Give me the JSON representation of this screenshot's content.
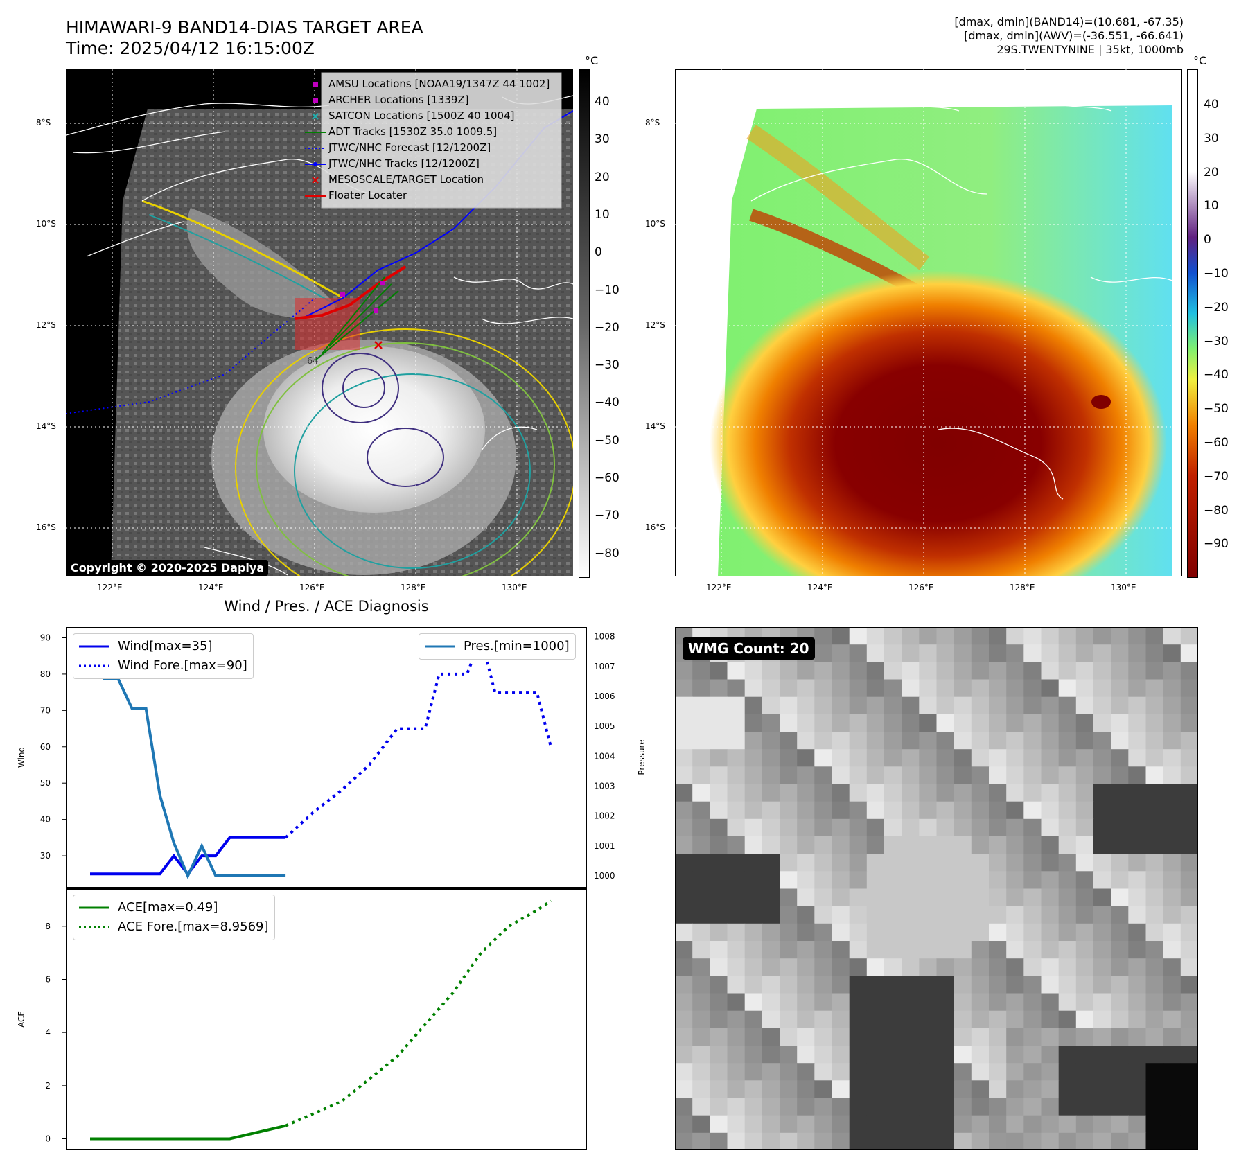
{
  "header": {
    "title_line1": "HIMAWARI-9 BAND14-DIAS TARGET AREA",
    "title_line2": "Time: 2025/04/12 16:15:00Z",
    "info_line1": "[dmax, dmin](BAND14)=(10.681, -67.35)",
    "info_line2": "[dmax, dmin](AWV)=(-36.551, -66.641)",
    "info_line3": "29S.TWENTYNINE | 35kt, 1000mb"
  },
  "maps": {
    "lat_labels": [
      "8°S",
      "10°S",
      "12°S",
      "14°S",
      "16°S"
    ],
    "lon_labels": [
      "122°E",
      "124°E",
      "126°E",
      "128°E",
      "130°E"
    ],
    "copyright": "Copyright © 2020-2025 Dapiya",
    "colorbar_unit": "°C",
    "left_colorbar_ticks": [
      "40",
      "30",
      "20",
      "10",
      "0",
      "−10",
      "−20",
      "−30",
      "−40",
      "−50",
      "−60",
      "−70",
      "−80"
    ],
    "right_colorbar_ticks": [
      "40",
      "30",
      "20",
      "10",
      "0",
      "−10",
      "−20",
      "−30",
      "−40",
      "−50",
      "−60",
      "−70",
      "−80",
      "−90"
    ],
    "contour_label": "64",
    "legend": [
      {
        "label": "AMSU Locations [NOAA19/1347Z 44 1002]",
        "marker": "square",
        "color": "#c000c0"
      },
      {
        "label": "ARCHER Locations [1339Z]",
        "marker": "square",
        "color": "#c000c0"
      },
      {
        "label": "SATCON Locations [1500Z 40 1004]",
        "marker": "x",
        "color": "#20b0b0"
      },
      {
        "label": "ADT Tracks [1530Z 35.0 1009.5]",
        "marker": "line",
        "color": "#008000"
      },
      {
        "label": "JTWC/NHC Forecast [12/1200Z]",
        "marker": "dotted",
        "color": "#0000ff"
      },
      {
        "label": "JTWC/NHC Tracks [12/1200Z]",
        "marker": "line-dot",
        "color": "#0000ff"
      },
      {
        "label": "MESOSCALE/TARGET Location",
        "marker": "x",
        "color": "#e00000"
      },
      {
        "label": "Floater Locater",
        "marker": "line",
        "color": "#e00000"
      }
    ]
  },
  "diagnosis": {
    "title": "Wind / Pres. / ACE Diagnosis",
    "wmg_label": "WMG Count: 20"
  },
  "chart_data": [
    {
      "type": "line",
      "title": "Wind / Pres. / ACE Diagnosis",
      "ylabel": "Wind",
      "y2label": "Pressure",
      "ylim": [
        22,
        92
      ],
      "y2lim": [
        999.7,
        1008.2
      ],
      "yticks": [
        30,
        40,
        50,
        60,
        70,
        80,
        90
      ],
      "y2ticks": [
        1000,
        1001,
        1002,
        1003,
        1004,
        1005,
        1006,
        1007,
        1008
      ],
      "x": [
        0,
        1,
        2,
        3,
        4,
        5,
        6,
        7,
        8,
        9,
        10,
        11,
        12,
        13,
        14,
        15,
        16,
        17,
        18,
        19,
        20,
        21,
        22,
        23,
        24,
        25,
        26,
        27,
        28,
        29,
        30,
        31,
        32,
        33,
        34,
        35,
        36
      ],
      "series": [
        {
          "name": "Wind[max=35]",
          "axis": "left",
          "color": "#0000ee",
          "style": "solid",
          "x": [
            0,
            1,
            2,
            3,
            4,
            5,
            6,
            7,
            8,
            9,
            10,
            11,
            12,
            13,
            14
          ],
          "values": [
            25,
            25,
            25,
            25,
            25,
            25,
            30,
            25,
            30,
            30,
            35,
            35,
            35,
            35,
            35
          ]
        },
        {
          "name": "Wind Fore.[max=90]",
          "axis": "left",
          "color": "#0000ee",
          "style": "dotted",
          "x": [
            14,
            16,
            18,
            20,
            22,
            23,
            24,
            25,
            26,
            27,
            28,
            29,
            30,
            31,
            32,
            33
          ],
          "values": [
            35,
            42,
            48,
            55,
            65,
            65,
            65,
            80,
            80,
            80,
            90,
            75,
            75,
            75,
            75,
            60
          ]
        },
        {
          "name": "Pres.[min=1000]",
          "axis": "right",
          "color": "#1f77b4",
          "style": "solid",
          "x": [
            0,
            1,
            2,
            3,
            4,
            5,
            6,
            7,
            8,
            9,
            10,
            11,
            12,
            13,
            14
          ],
          "values": [
            1008,
            1006.6,
            1006.6,
            1005.6,
            1005.6,
            1002.7,
            1001.1,
            1000,
            1001,
            1000,
            1000,
            1000,
            1000,
            1000,
            1000
          ]
        }
      ]
    },
    {
      "type": "line",
      "ylabel": "ACE",
      "ylim": [
        -0.3,
        9.3
      ],
      "yticks": [
        0,
        2,
        4,
        6,
        8
      ],
      "series": [
        {
          "name": "ACE[max=0.49]",
          "color": "#008000",
          "style": "solid",
          "x": [
            0,
            10,
            14
          ],
          "values": [
            0,
            0,
            0.49
          ]
        },
        {
          "name": "ACE Fore.[max=8.9569]",
          "color": "#008000",
          "style": "dotted",
          "x": [
            14,
            18,
            22,
            26,
            28,
            30,
            32,
            33
          ],
          "values": [
            0.49,
            1.4,
            3.1,
            5.5,
            7.0,
            8.0,
            8.6,
            8.96
          ]
        }
      ]
    }
  ]
}
